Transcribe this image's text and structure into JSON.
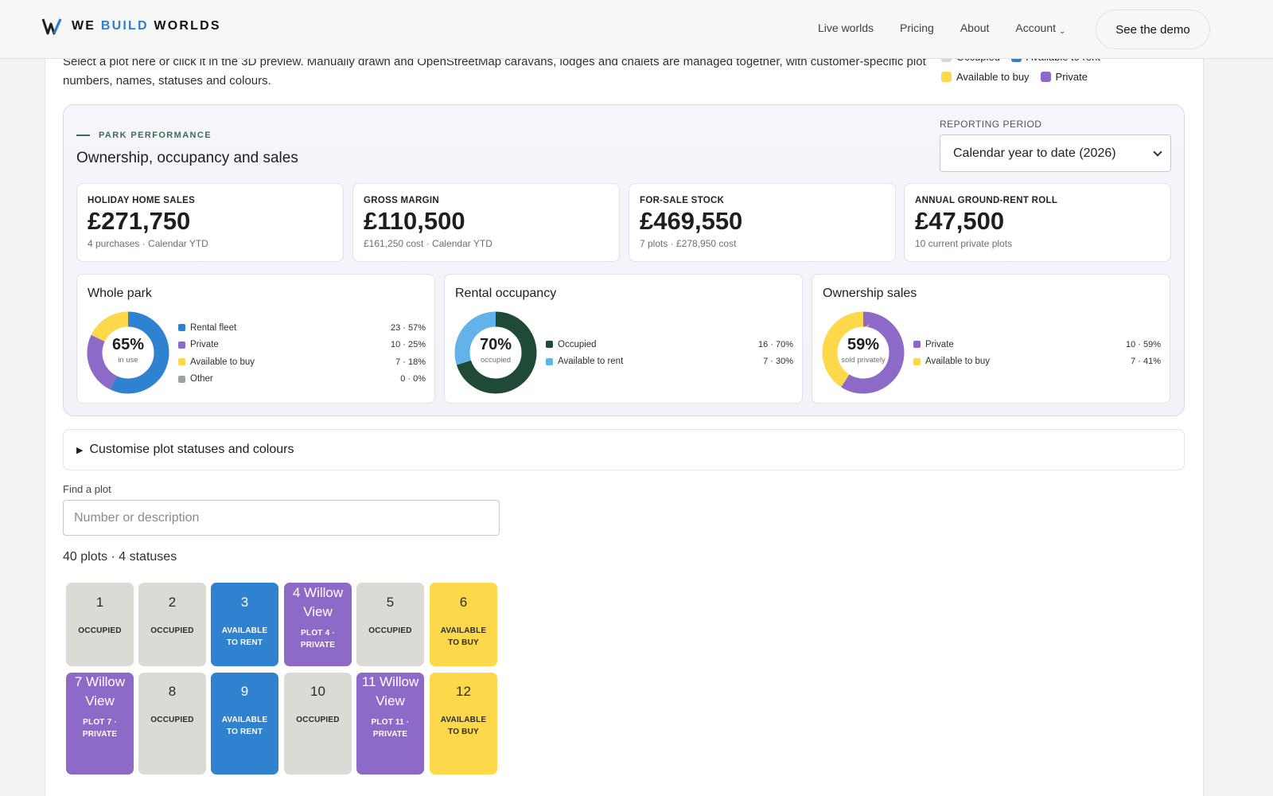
{
  "brand": {
    "mark": "W",
    "name_pre": "WE",
    "name_accent": "BUILD",
    "name_post": "WORLDS"
  },
  "nav": {
    "items": [
      "Live worlds",
      "Pricing",
      "About",
      "Account"
    ],
    "cta": "See the demo"
  },
  "intro": "Select a plot here or click it in the 3D preview. Manually drawn and OpenStreetMap caravans, lodges and chalets are managed together, with customer-specific plot numbers, names, statuses and colours.",
  "legend": [
    {
      "label": "Occupied",
      "color": "#d9d7d2"
    },
    {
      "label": "Available to rent",
      "color": "#2f82cf"
    },
    {
      "label": "Available to buy",
      "color": "#fcd84a"
    },
    {
      "label": "Private",
      "color": "#8d6ac7"
    }
  ],
  "performance": {
    "kicker": "PARK PERFORMANCE",
    "title": "Ownership, occupancy and sales",
    "reporting_label": "REPORTING PERIOD",
    "reporting_value": "Calendar year to date (2026)",
    "kpis": [
      {
        "label": "HOLIDAY HOME SALES",
        "value": "£271,750",
        "sub": "4 purchases · Calendar YTD"
      },
      {
        "label": "GROSS MARGIN",
        "value": "£110,500",
        "sub": "£161,250 cost · Calendar YTD"
      },
      {
        "label": "FOR-SALE STOCK",
        "value": "£469,550",
        "sub": "7 plots · £278,950 cost"
      },
      {
        "label": "ANNUAL GROUND-RENT ROLL",
        "value": "£47,500",
        "sub": "10 current private plots"
      }
    ],
    "donuts": [
      {
        "title": "Whole park",
        "pct": "65%",
        "caption": "in use",
        "segments": [
          {
            "label": "Rental fleet",
            "value": "23 · 57%",
            "share": 57,
            "color": "#2f82cf"
          },
          {
            "label": "Private",
            "value": "10 · 25%",
            "share": 25,
            "color": "#8d6ac7"
          },
          {
            "label": "Available to buy",
            "value": "7 · 18%",
            "share": 18,
            "color": "#fcd84a"
          },
          {
            "label": "Other",
            "value": "0 · 0%",
            "share": 0,
            "color": "#9aa39e"
          }
        ]
      },
      {
        "title": "Rental occupancy",
        "pct": "70%",
        "caption": "occupied",
        "segments": [
          {
            "label": "Occupied",
            "value": "16 · 70%",
            "share": 70,
            "color": "#1f4a35"
          },
          {
            "label": "Available to rent",
            "value": "7 · 30%",
            "share": 30,
            "color": "#63b3ea"
          }
        ]
      },
      {
        "title": "Ownership sales",
        "pct": "59%",
        "caption": "sold privately",
        "segments": [
          {
            "label": "Private",
            "value": "10 · 59%",
            "share": 59,
            "color": "#8d6ac7"
          },
          {
            "label": "Available to buy",
            "value": "7 · 41%",
            "share": 41,
            "color": "#fcd84a"
          }
        ]
      }
    ]
  },
  "customise": "Customise plot statuses and colours",
  "find": {
    "label": "Find a plot",
    "placeholder": "Number or description"
  },
  "count": "40 plots · 4 statuses",
  "plots": [
    {
      "title": "1",
      "status": "OCCUPIED",
      "type": "occ"
    },
    {
      "title": "2",
      "status": "OCCUPIED",
      "type": "occ"
    },
    {
      "title": "3",
      "status": "AVAILABLE TO RENT",
      "type": "rent"
    },
    {
      "title": "4 Willow View",
      "status": "PLOT 4 · PRIVATE",
      "type": "priv"
    },
    {
      "title": "5",
      "status": "OCCUPIED",
      "type": "occ"
    },
    {
      "title": "6",
      "status": "AVAILABLE TO BUY",
      "type": "buy"
    },
    {
      "title": "7 Willow View",
      "status": "PLOT 7 · PRIVATE",
      "type": "priv"
    },
    {
      "title": "8",
      "status": "OCCUPIED",
      "type": "occ"
    },
    {
      "title": "9",
      "status": "AVAILABLE TO RENT",
      "type": "rent"
    },
    {
      "title": "10",
      "status": "OCCUPIED",
      "type": "occ"
    },
    {
      "title": "11 Willow View",
      "status": "PLOT 11 · PRIVATE",
      "type": "priv"
    },
    {
      "title": "12",
      "status": "AVAILABLE TO BUY",
      "type": "buy"
    }
  ]
}
